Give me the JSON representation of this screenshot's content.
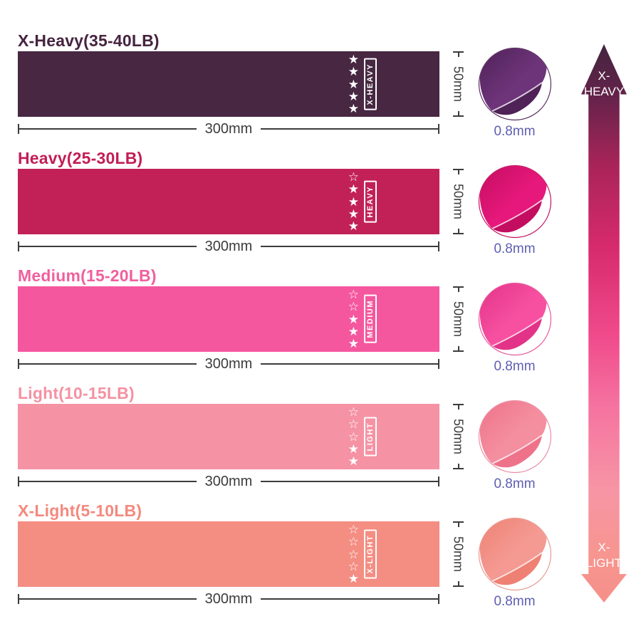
{
  "page": {
    "background": "#ffffff",
    "dim_color": "#3c3c3c",
    "thickness_color": "#5e5eb2"
  },
  "rows": [
    {
      "title": "X-Heavy(35-40LB)",
      "label_vertical": "X-HEAVY",
      "stars_filled": 5,
      "stars_total": 5,
      "width_label": "300mm",
      "height_label": "50mm",
      "thickness_label": "0.8mm",
      "colors": {
        "band": "#472742",
        "title": "#46243f",
        "roll_main": "#6d3479",
        "roll_dark": "#4f2258",
        "ring": "#5a2c60"
      }
    },
    {
      "title": "Heavy(25-30LB)",
      "label_vertical": "HEAVY",
      "stars_filled": 4,
      "stars_total": 5,
      "width_label": "300mm",
      "height_label": "50mm",
      "thickness_label": "0.8mm",
      "colors": {
        "band": "#c22157",
        "title": "#c21e57",
        "roll_main": "#e6187b",
        "roll_dark": "#c30d60",
        "ring": "#c4145f"
      }
    },
    {
      "title": "Medium(15-20LB)",
      "label_vertical": "MEDIUM",
      "stars_filled": 3,
      "stars_total": 5,
      "width_label": "300mm",
      "height_label": "50mm",
      "thickness_label": "0.8mm",
      "colors": {
        "band": "#f5579e",
        "title": "#f0609e",
        "roll_main": "#f750a1",
        "roll_dark": "#e23388",
        "ring": "#e8589c"
      }
    },
    {
      "title": "Light(10-15LB)",
      "label_vertical": "LIGHT",
      "stars_filled": 2,
      "stars_total": 5,
      "width_label": "300mm",
      "height_label": "50mm",
      "thickness_label": "0.8mm",
      "colors": {
        "band": "#f593a4",
        "title": "#f492a3",
        "roll_main": "#f48fa0",
        "roll_dark": "#ee7289",
        "ring": "#eb8ea4"
      }
    },
    {
      "title": "X-Light(5-10LB)",
      "label_vertical": "X-LIGHT",
      "stars_filled": 1,
      "stars_total": 5,
      "width_label": "300mm",
      "height_label": "50mm",
      "thickness_label": "0.8mm",
      "colors": {
        "band": "#f48d82",
        "title": "#f4897e",
        "roll_main": "#f49a92",
        "roll_dark": "#ee8174",
        "ring": "#e99a90"
      }
    }
  ],
  "scale_arrow": {
    "top": {
      "line1": "X-",
      "line2": "HEAVY"
    },
    "bottom": {
      "line1": "X-",
      "line2": "LIGHT"
    },
    "gradient": [
      "#44243e",
      "#62234a",
      "#aa2459",
      "#d62a6c",
      "#f04a8b",
      "#f573a0",
      "#f795a5",
      "#f7958f",
      "#f69089"
    ]
  }
}
